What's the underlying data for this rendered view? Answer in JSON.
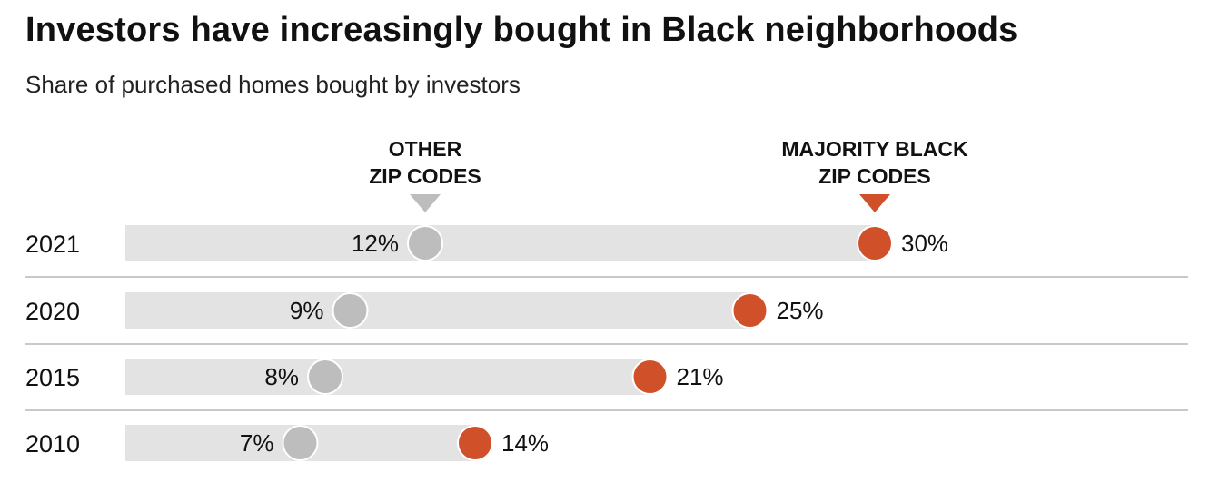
{
  "title": "Investors have increasingly bought in Black neighborhoods",
  "subtitle": "Share of purchased homes bought by investors",
  "colors": {
    "other": "#bdbdbd",
    "black": "#d0502a",
    "bar": "#e3e3e3",
    "separator": "#c9c9c9"
  },
  "chart_data": {
    "type": "dot-plot",
    "title": "Investors have increasingly bought in Black neighborhoods",
    "subtitle": "Share of purchased homes bought by investors",
    "xlabel": "",
    "ylabel": "",
    "xlim": [
      0,
      35
    ],
    "grid": false,
    "legend_position": "top",
    "categories": [
      "2021",
      "2020",
      "2015",
      "2010"
    ],
    "series": [
      {
        "name": "Other zip codes",
        "legend_lines": [
          "OTHER",
          "ZIP CODES"
        ],
        "values": [
          12,
          9,
          8,
          7
        ],
        "labels": [
          "12%",
          "9%",
          "8%",
          "7%"
        ],
        "label_side": "left"
      },
      {
        "name": "Majority Black zip codes",
        "legend_lines": [
          "MAJORITY BLACK",
          "ZIP CODES"
        ],
        "values": [
          30,
          25,
          21,
          14
        ],
        "labels": [
          "30%",
          "25%",
          "21%",
          "14%"
        ],
        "label_side": "right"
      }
    ]
  }
}
